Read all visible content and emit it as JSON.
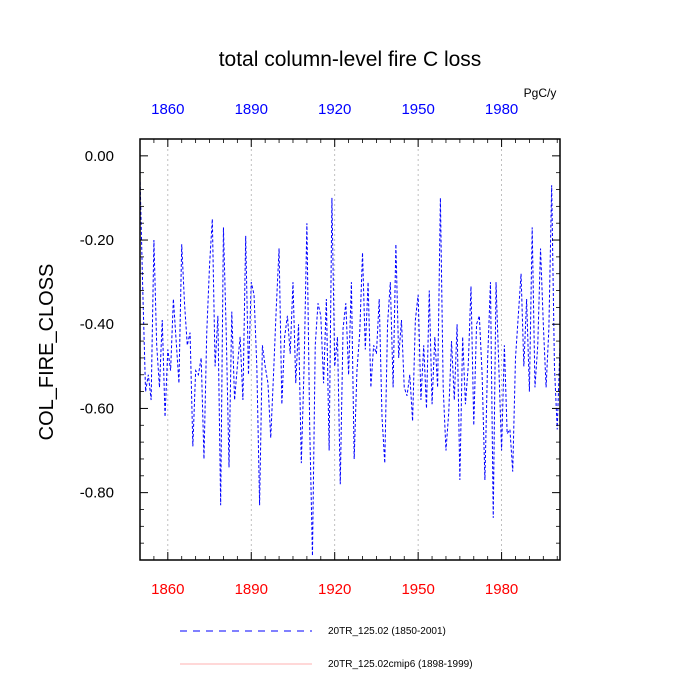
{
  "chart_data": {
    "type": "line",
    "title": "total column-level fire C loss",
    "ylabel": "COL_FIRE_CLOSS",
    "units": "PgC/y",
    "xlim": [
      1850,
      2001
    ],
    "ylim": [
      -0.96,
      0.04
    ],
    "xticks": [
      1860,
      1890,
      1920,
      1950,
      1980
    ],
    "xtick_labels": [
      "1860",
      "1890",
      "1920",
      "1950",
      "1980"
    ],
    "yticks": [
      0.0,
      -0.2,
      -0.4,
      -0.6,
      -0.8
    ],
    "ytick_labels": [
      "0.00",
      "-0.20",
      "-0.40",
      "-0.60",
      "-0.80"
    ],
    "grid": "vertical dotted at major x ticks",
    "top_axis_color": "#0000ff",
    "bottom_axis_color": "#ff0000",
    "series": [
      {
        "name": "20TR_125.02 (1850-2001)",
        "color": "#0000ff",
        "style": "dashed",
        "x_start": 1850,
        "values": [
          -0.05,
          -0.32,
          -0.56,
          -0.52,
          -0.58,
          -0.2,
          -0.45,
          -0.55,
          -0.39,
          -0.62,
          -0.46,
          -0.51,
          -0.34,
          -0.44,
          -0.54,
          -0.21,
          -0.35,
          -0.45,
          -0.42,
          -0.69,
          -0.51,
          -0.52,
          -0.48,
          -0.72,
          -0.42,
          -0.26,
          -0.15,
          -0.5,
          -0.38,
          -0.83,
          -0.17,
          -0.42,
          -0.74,
          -0.37,
          -0.58,
          -0.5,
          -0.43,
          -0.58,
          -0.19,
          -0.52,
          -0.3,
          -0.33,
          -0.5,
          -0.83,
          -0.45,
          -0.5,
          -0.54,
          -0.67,
          -0.52,
          -0.36,
          -0.22,
          -0.59,
          -0.43,
          -0.38,
          -0.47,
          -0.3,
          -0.54,
          -0.4,
          -0.73,
          -0.5,
          -0.16,
          -0.64,
          -0.95,
          -0.45,
          -0.35,
          -0.38,
          -0.54,
          -0.34,
          -0.7,
          -0.1,
          -0.5,
          -0.43,
          -0.78,
          -0.41,
          -0.35,
          -0.52,
          -0.3,
          -0.72,
          -0.51,
          -0.42,
          -0.23,
          -0.46,
          -0.3,
          -0.55,
          -0.45,
          -0.47,
          -0.34,
          -0.62,
          -0.73,
          -0.4,
          -0.3,
          -0.55,
          -0.21,
          -0.48,
          -0.39,
          -0.55,
          -0.57,
          -0.52,
          -0.63,
          -0.39,
          -0.33,
          -0.58,
          -0.45,
          -0.6,
          -0.32,
          -0.59,
          -0.43,
          -0.55,
          -0.1,
          -0.55,
          -0.7,
          -0.61,
          -0.44,
          -0.58,
          -0.4,
          -0.77,
          -0.43,
          -0.59,
          -0.5,
          -0.31,
          -0.64,
          -0.4,
          -0.38,
          -0.52,
          -0.77,
          -0.48,
          -0.3,
          -0.86,
          -0.3,
          -0.5,
          -0.7,
          -0.45,
          -0.66,
          -0.65,
          -0.75,
          -0.48,
          -0.38,
          -0.28,
          -0.5,
          -0.34,
          -0.56,
          -0.17,
          -0.55,
          -0.45,
          -0.22,
          -0.4,
          -0.55,
          -0.41,
          -0.07,
          -0.5,
          -0.65,
          -0.45
        ]
      },
      {
        "name": "20TR_125.02cmip6 (1898-1999)",
        "color": "#ff0000",
        "style": "solid",
        "values": []
      }
    ]
  }
}
